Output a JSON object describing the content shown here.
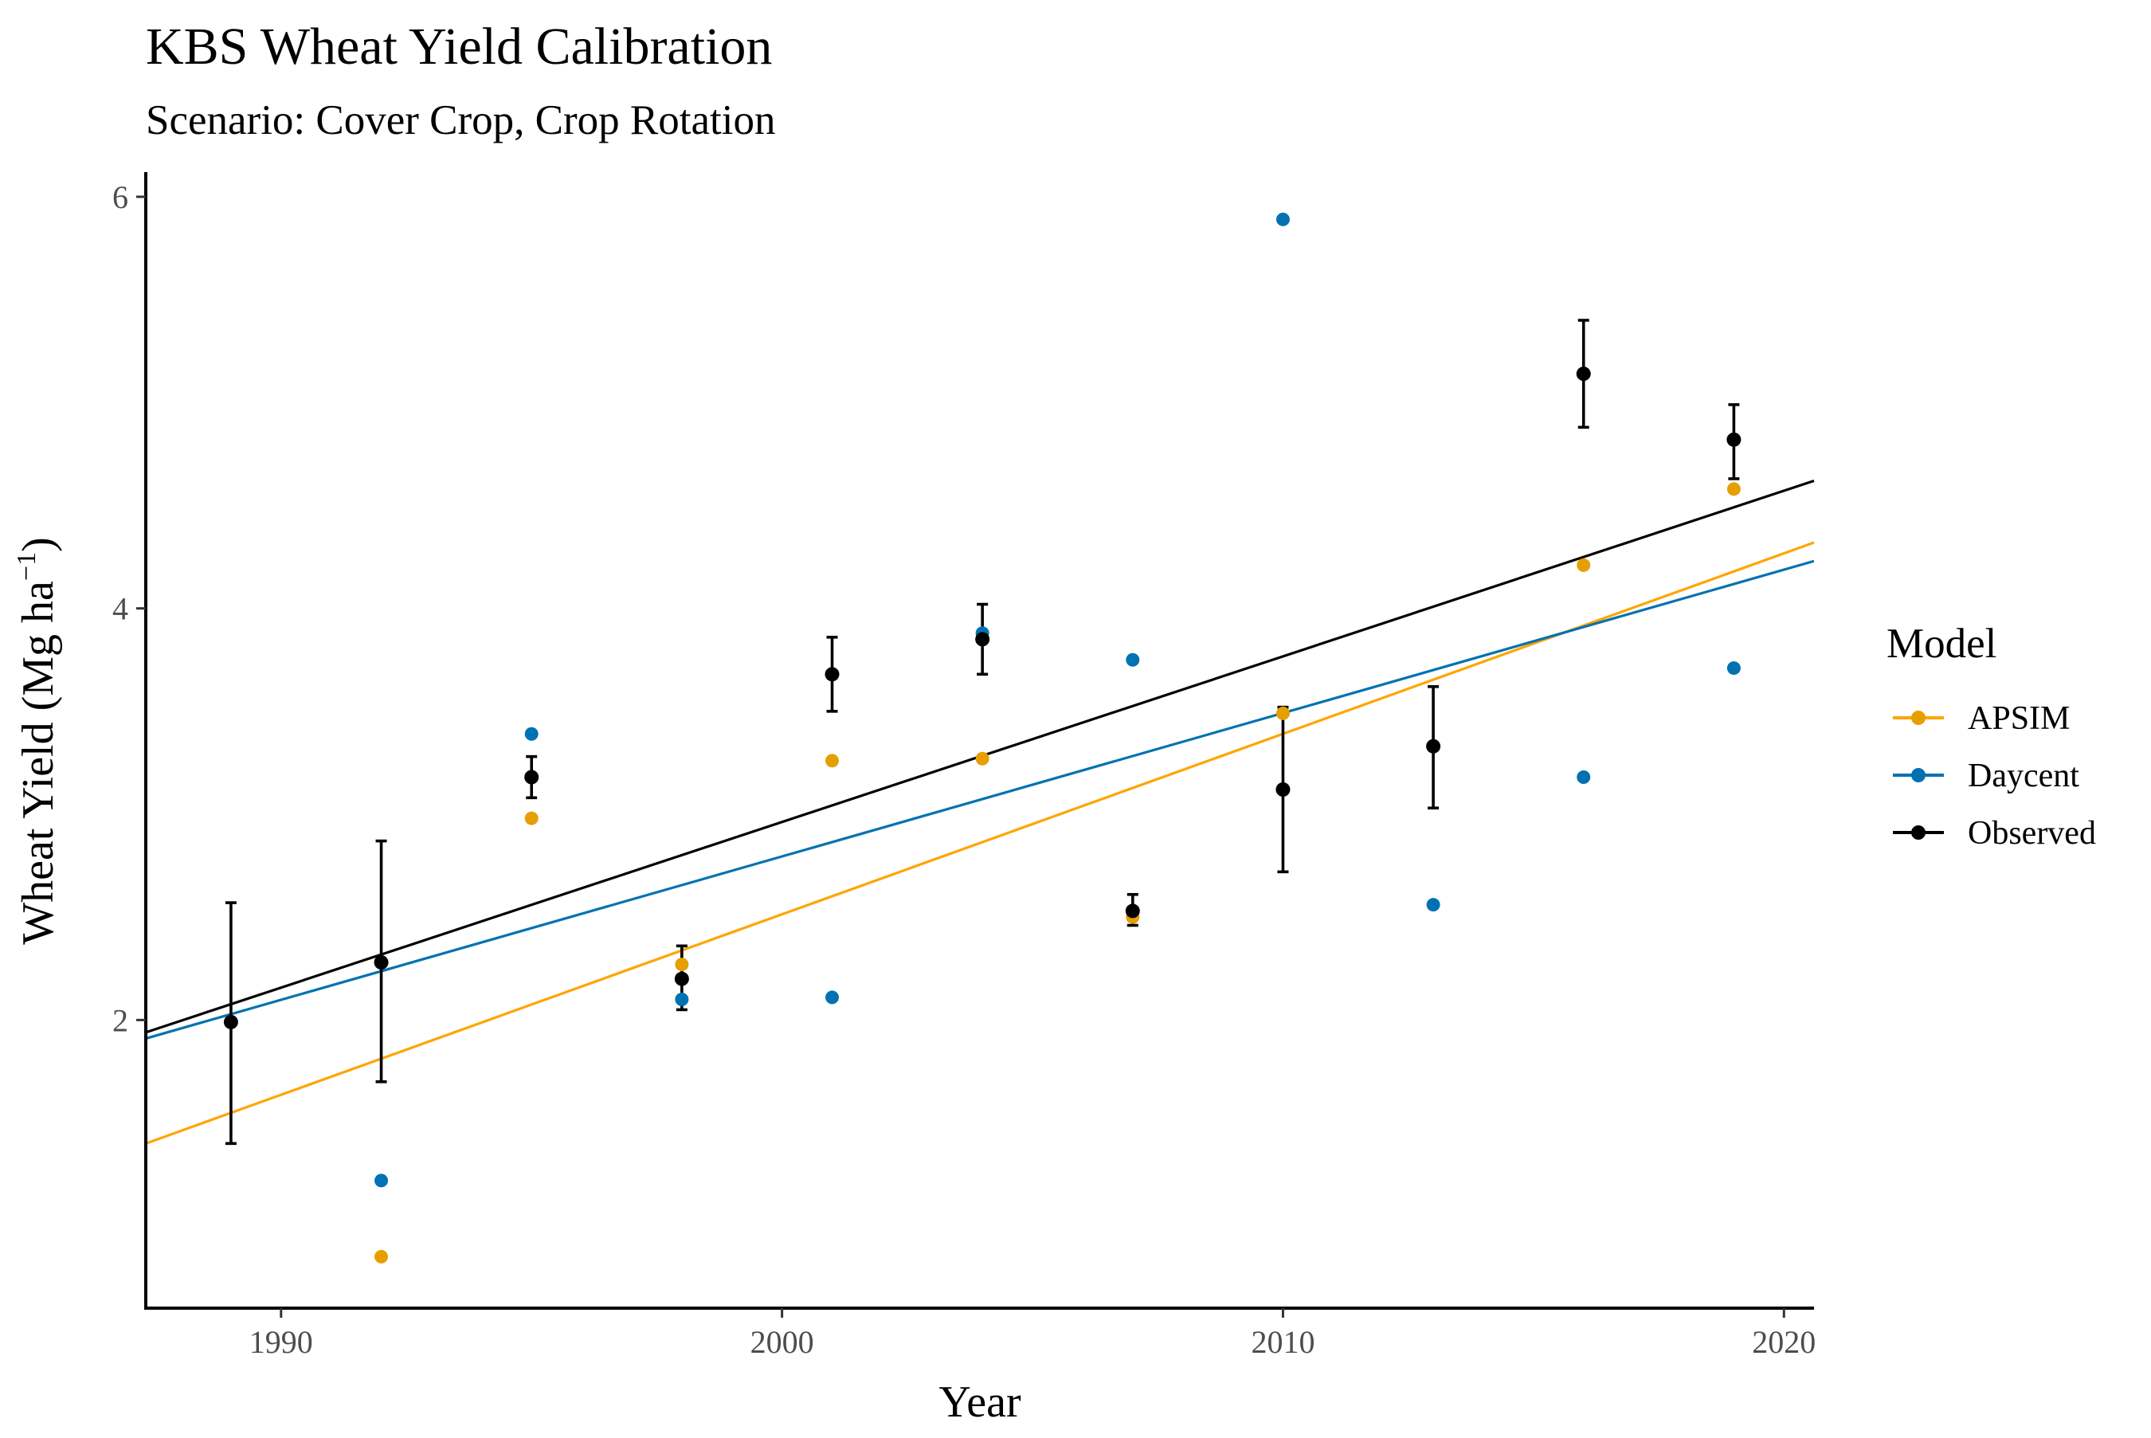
{
  "chart_data": {
    "type": "scatter",
    "title": "KBS Wheat Yield Calibration",
    "subtitle": "Scenario: Cover Crop, Crop Rotation",
    "xlabel": "Year",
    "ylabel_main": "Wheat Yield (Mg ha",
    "ylabel_sup": "−1",
    "ylabel_close": ")",
    "xlim": [
      1987.3,
      2020.6
    ],
    "ylim": [
      0.6,
      6.12
    ],
    "x_ticks": [
      1990,
      2000,
      2010,
      2020
    ],
    "x_tick_labels": [
      "1990",
      "2000",
      "2010",
      "2020"
    ],
    "y_ticks": [
      2,
      4,
      6
    ],
    "y_tick_labels": [
      "2",
      "4",
      "6"
    ],
    "grid": false,
    "legend": {
      "title": "Model",
      "position": "right",
      "entries": [
        "APSIM",
        "Daycent",
        "Observed"
      ]
    },
    "colors": {
      "APSIM": "#E69F00",
      "APSIM_trend": "#FFA500",
      "Daycent": "#0072B2",
      "Observed": "#000000"
    },
    "series": [
      {
        "name": "APSIM",
        "x": [
          1992,
          1995,
          1998,
          2001,
          2004,
          2007,
          2010,
          2016,
          2019
        ],
        "y": [
          0.85,
          2.98,
          2.27,
          3.26,
          3.27,
          2.5,
          3.49,
          4.21,
          4.58
        ],
        "trend": {
          "x": [
            1987.3,
            2020.6
          ],
          "y": [
            1.4,
            4.32
          ]
        }
      },
      {
        "name": "Daycent",
        "x": [
          1992,
          1995,
          1998,
          2001,
          2004,
          2007,
          2010,
          2013,
          2016,
          2019
        ],
        "y": [
          1.22,
          3.39,
          2.1,
          2.11,
          3.88,
          3.75,
          5.89,
          2.56,
          3.18,
          3.71
        ],
        "trend": {
          "x": [
            1987.3,
            2020.6
          ],
          "y": [
            1.91,
            4.23
          ]
        }
      },
      {
        "name": "Observed",
        "x": [
          1989,
          1992,
          1995,
          1998,
          2001,
          2004,
          2007,
          2010,
          2013,
          2016,
          2019
        ],
        "y": [
          1.99,
          2.28,
          3.18,
          2.2,
          3.68,
          3.85,
          2.53,
          3.12,
          3.33,
          5.14,
          4.82
        ],
        "err_low": [
          1.4,
          1.7,
          3.08,
          2.05,
          3.5,
          3.68,
          2.46,
          2.72,
          3.03,
          4.88,
          4.63
        ],
        "err_high": [
          2.57,
          2.87,
          3.28,
          2.36,
          3.86,
          4.02,
          2.61,
          3.52,
          3.62,
          5.4,
          4.99
        ],
        "trend": {
          "x": [
            1987.3,
            2020.6
          ],
          "y": [
            1.94,
            4.62
          ]
        }
      }
    ]
  }
}
